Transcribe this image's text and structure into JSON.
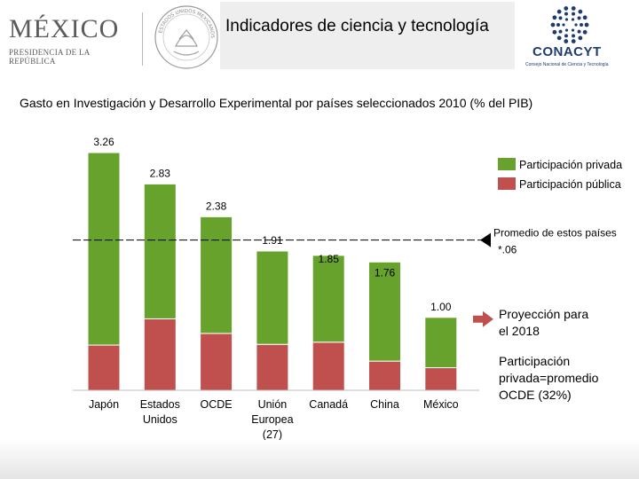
{
  "header": {
    "mexico_title": "MÉXICO",
    "mexico_subtitle": "PRESIDENCIA DE LA REPÚBLICA",
    "seal_text": "ESTADOS UNIDOS MEXICANOS",
    "slide_title": "Indicadores de ciencia y tecnología",
    "conacyt_name": "CONACYT",
    "conacyt_subtitle": "Consejo Nacional de Ciencia y Tecnología"
  },
  "subtitle": "Gasto en Investigación y Desarrollo Experimental por países seleccionados 2010 (% del PIB)",
  "colors": {
    "private": "#66a22c",
    "public": "#c0504d",
    "arrow": "#c0504d",
    "grid": "#7f7f7f"
  },
  "chart_data": {
    "type": "bar",
    "stacked": true,
    "title": "Gasto en Investigación y Desarrollo Experimental por países seleccionados 2010 (% del PIB)",
    "categories": [
      "Japón",
      "Estados Unidos",
      "OCDE",
      "Unión Europea (27)",
      "Canadá",
      "China",
      "México"
    ],
    "totals_labels": [
      "3.26",
      "2.83",
      "2.38",
      "1.91",
      "1.85",
      "1.76",
      "1.00"
    ],
    "totals": [
      3.26,
      2.83,
      2.38,
      1.91,
      1.85,
      1.76,
      1.0
    ],
    "series": [
      {
        "name": "Participación pública",
        "values": [
          0.62,
          0.98,
          0.78,
          0.63,
          0.66,
          0.4,
          0.31
        ]
      },
      {
        "name": "Participación privada",
        "values": [
          2.64,
          1.85,
          1.6,
          1.28,
          1.19,
          1.36,
          0.69
        ]
      }
    ],
    "legend": [
      "Participación privada",
      "Participación pública"
    ],
    "legend_position": "top-right",
    "reference_line": {
      "value": 2.06,
      "label": "Promedio de estos países *.06"
    },
    "annotations": {
      "projection": "Proyección para el 2018",
      "participation": "Participación privada=promedio OCDE (32%)"
    },
    "ylim": [
      0,
      3.5
    ],
    "xlabel": "",
    "ylabel": ""
  }
}
